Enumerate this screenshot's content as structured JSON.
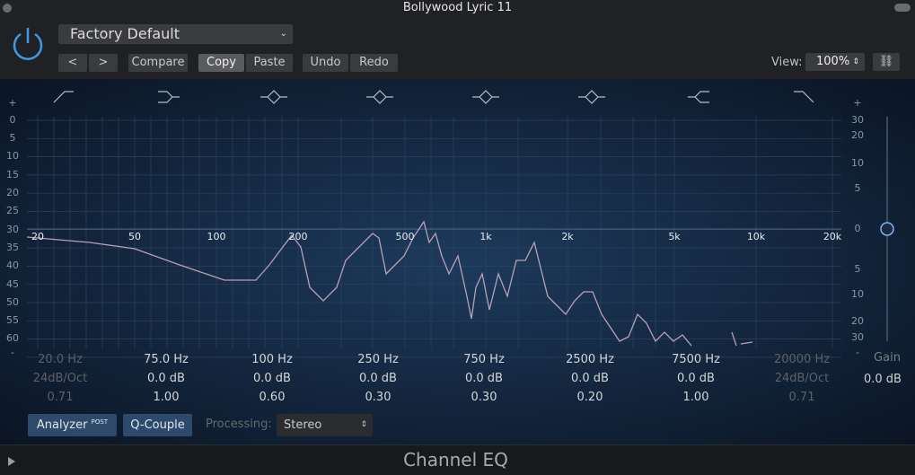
{
  "window": {
    "title": "Bollywood Lyric 11"
  },
  "header": {
    "preset": "Factory Default",
    "buttons": [
      "Compare",
      "Copy",
      "Paste",
      "Undo",
      "Redo"
    ],
    "view_label": "View:",
    "view_value": "100%"
  },
  "graph": {
    "left_scale": [
      "+",
      "0",
      "5",
      "10",
      "15",
      "20",
      "25",
      "30",
      "35",
      "40",
      "45",
      "50",
      "55",
      "60",
      "-"
    ],
    "right_scale": [
      "+",
      "30",
      "20",
      "10",
      "5",
      "0",
      "5",
      "10",
      "20",
      "30",
      "-"
    ],
    "freq_labels": [
      "20",
      "50",
      "100",
      "200",
      "500",
      "1k",
      "2k",
      "5k",
      "10k",
      "20k"
    ]
  },
  "bands": [
    {
      "freq": "20.0 Hz",
      "gain": "24dB/Oct",
      "q": "0.71"
    },
    {
      "freq": "75.0 Hz",
      "gain": "0.0 dB",
      "q": "1.00"
    },
    {
      "freq": "100 Hz",
      "gain": "0.0 dB",
      "q": "0.60"
    },
    {
      "freq": "250 Hz",
      "gain": "0.0 dB",
      "q": "0.30"
    },
    {
      "freq": "750 Hz",
      "gain": "0.0 dB",
      "q": "0.30"
    },
    {
      "freq": "2500 Hz",
      "gain": "0.0 dB",
      "q": "0.20"
    },
    {
      "freq": "7500 Hz",
      "gain": "0.0 dB",
      "q": "1.00"
    },
    {
      "freq": "20000 Hz",
      "gain": "24dB/Oct",
      "q": "0.71"
    }
  ],
  "gain": {
    "label": "Gain",
    "value": "0.0 dB"
  },
  "footer": {
    "analyzer": "Analyzer",
    "post": "POST",
    "q_couple": "Q-Couple",
    "processing_label": "Processing:",
    "processing_value": "Stereo"
  },
  "plugin_name": "Channel EQ"
}
